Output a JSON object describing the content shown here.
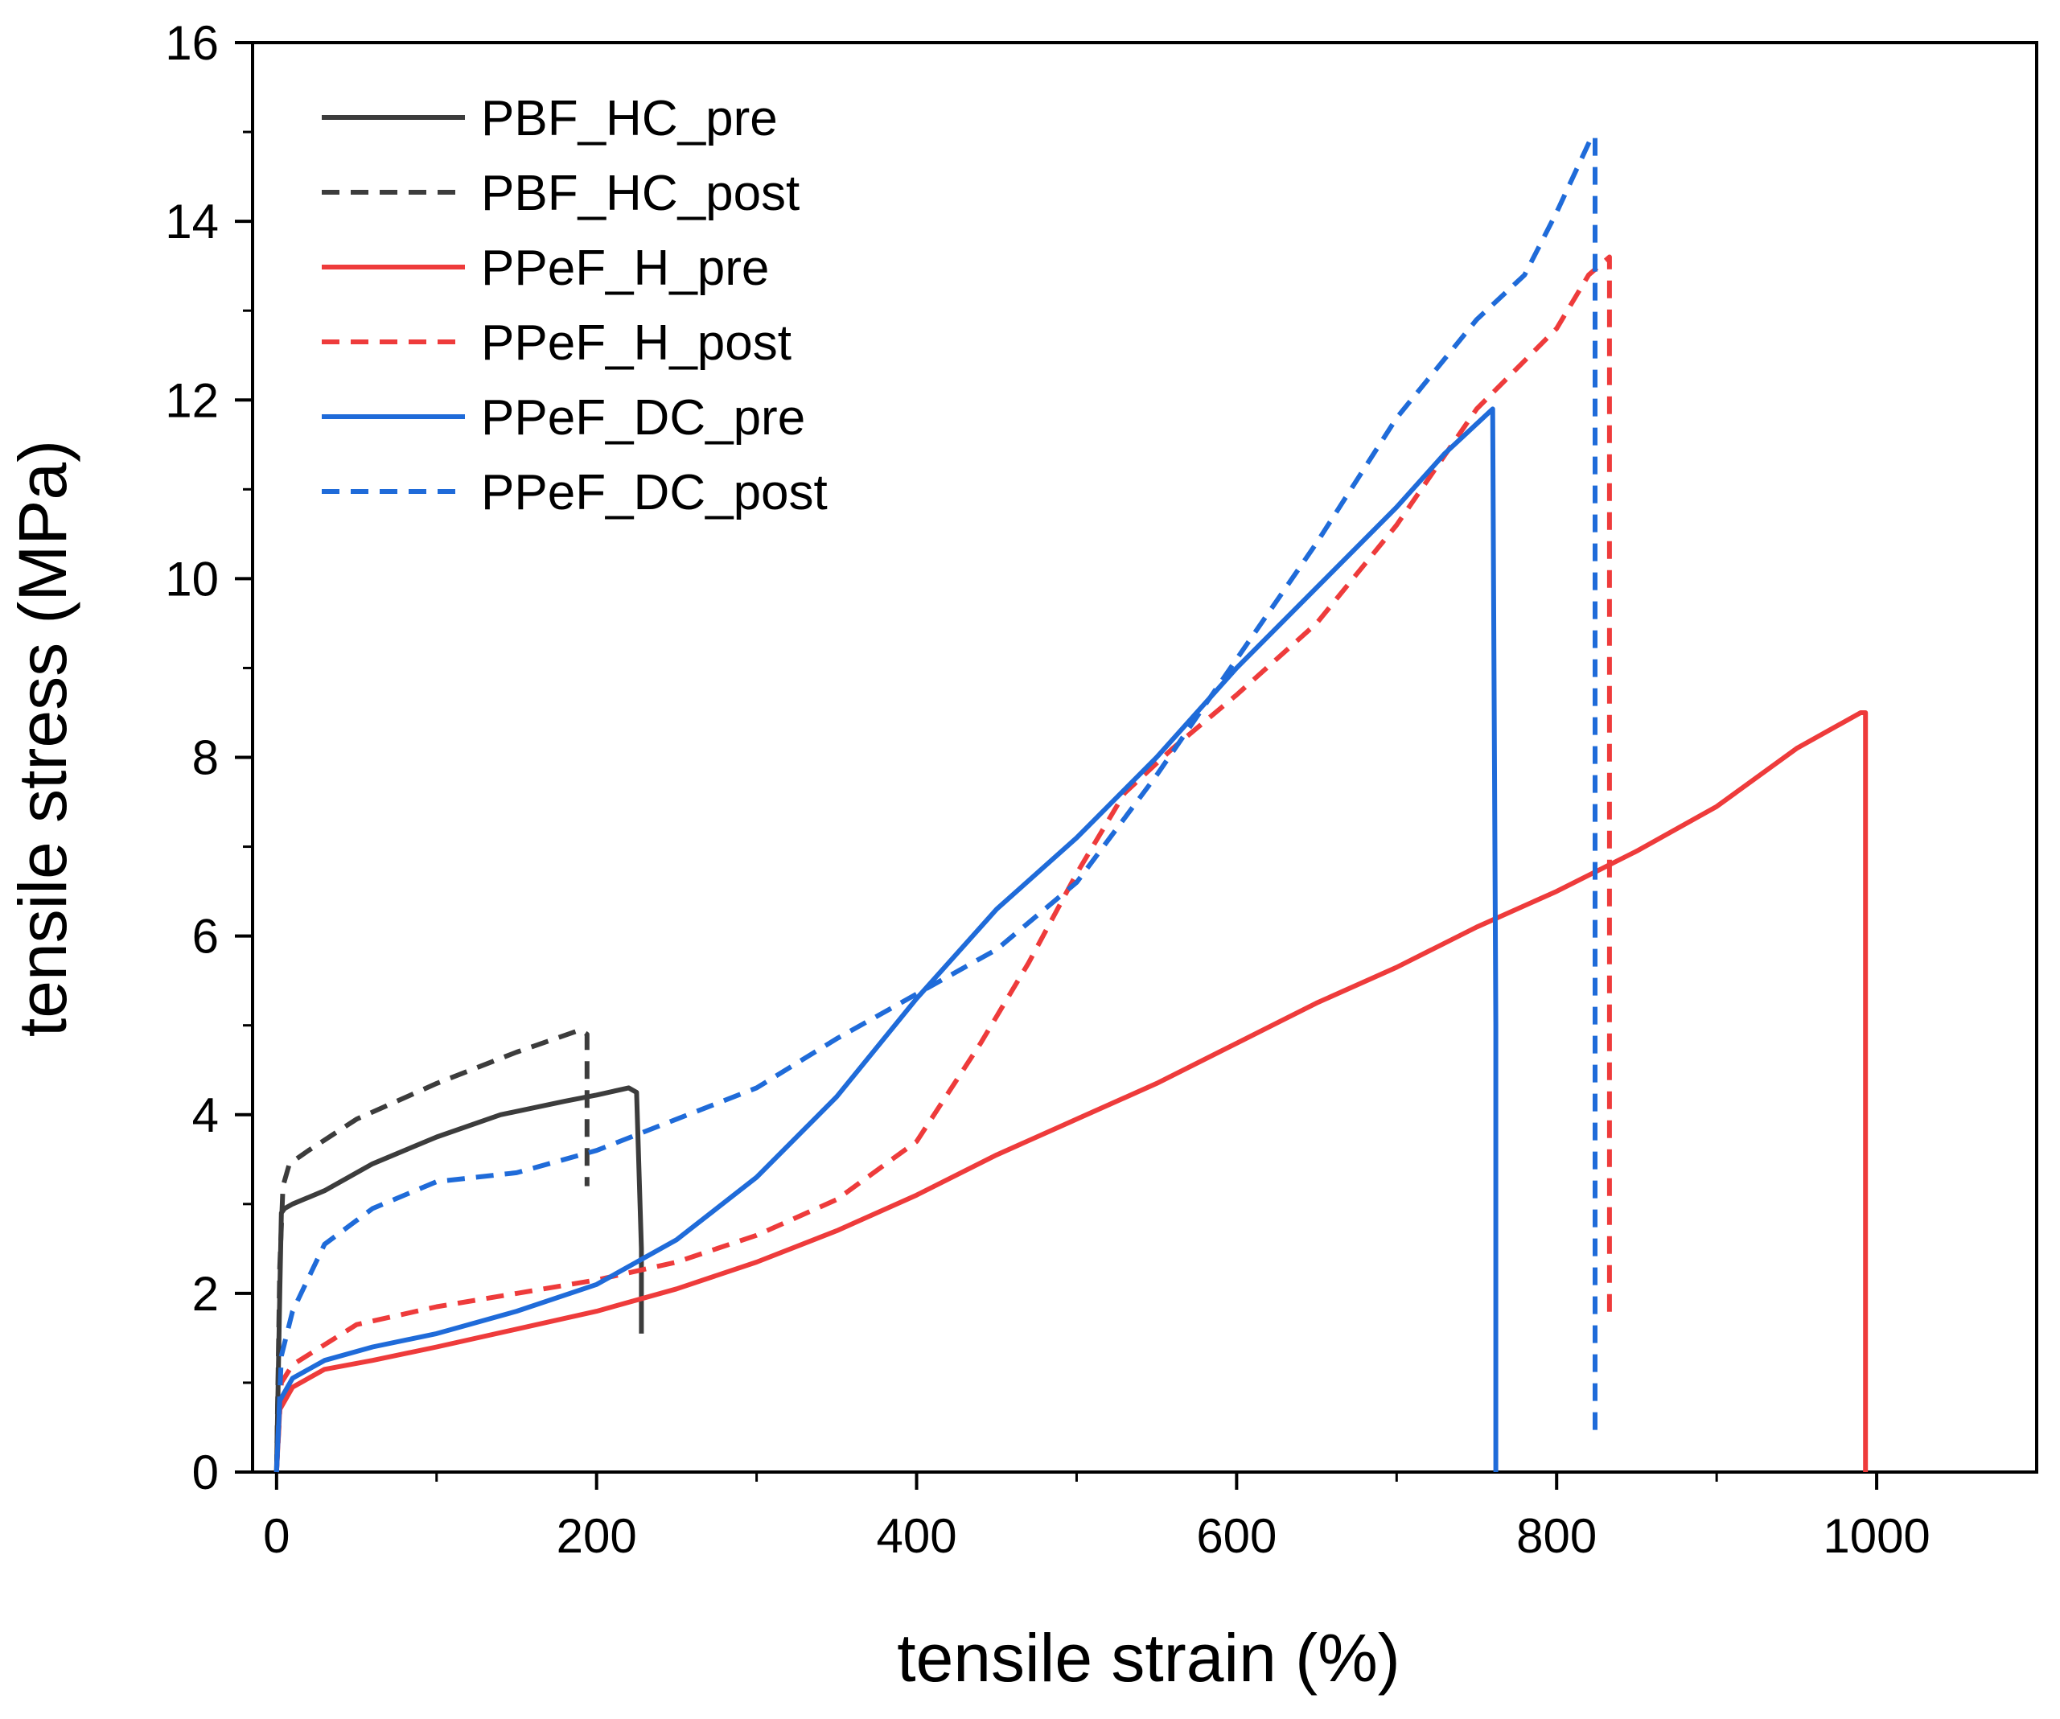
{
  "chart_data": {
    "type": "line",
    "title": "",
    "xlabel": "tensile strain (%)",
    "ylabel": "tensile stress (MPa)",
    "xlim": [
      -15,
      1100
    ],
    "ylim": [
      0,
      16
    ],
    "xticks": [
      0,
      200,
      400,
      600,
      800,
      1000
    ],
    "yticks": [
      0,
      2,
      4,
      6,
      8,
      10,
      12,
      14,
      16
    ],
    "legend_position": "top-left",
    "grid": false,
    "series": [
      {
        "name": "PBF_HC_pre",
        "color": "#3c3c3c",
        "dash": "solid",
        "x": [
          0,
          2,
          3,
          5,
          10,
          30,
          60,
          100,
          140,
          180,
          200,
          220,
          225,
          228,
          228
        ],
        "y": [
          0,
          2.0,
          2.9,
          2.95,
          3.0,
          3.15,
          3.45,
          3.75,
          4.0,
          4.15,
          4.22,
          4.3,
          4.25,
          2.5,
          1.55
        ]
      },
      {
        "name": "PBF_HC_post",
        "color": "#3c3c3c",
        "dash": "dashed",
        "x": [
          0,
          2,
          4,
          8,
          20,
          50,
          100,
          150,
          190,
          194,
          194,
          194
        ],
        "y": [
          0,
          2.3,
          3.2,
          3.45,
          3.6,
          3.95,
          4.35,
          4.7,
          4.95,
          4.9,
          4.0,
          3.2
        ]
      },
      {
        "name": "PPeF_H_pre",
        "color": "#ee3b3b",
        "dash": "solid",
        "x": [
          0,
          2,
          10,
          30,
          60,
          100,
          150,
          200,
          250,
          300,
          350,
          400,
          450,
          500,
          550,
          600,
          650,
          700,
          750,
          800,
          850,
          900,
          950,
          990,
          993,
          993,
          993
        ],
        "y": [
          0,
          0.7,
          0.95,
          1.15,
          1.25,
          1.4,
          1.6,
          1.8,
          2.05,
          2.35,
          2.7,
          3.1,
          3.55,
          3.95,
          4.35,
          4.8,
          5.25,
          5.65,
          6.1,
          6.5,
          6.95,
          7.45,
          8.1,
          8.5,
          8.5,
          1.5,
          0
        ]
      },
      {
        "name": "PPeF_H_post",
        "color": "#ee3b3b",
        "dash": "dashed",
        "x": [
          0,
          3,
          10,
          50,
          100,
          150,
          200,
          250,
          300,
          350,
          400,
          440,
          470,
          500,
          530,
          560,
          600,
          650,
          700,
          750,
          800,
          820,
          833,
          833,
          833
        ],
        "y": [
          0,
          1.0,
          1.2,
          1.65,
          1.85,
          2.0,
          2.15,
          2.35,
          2.65,
          3.05,
          3.7,
          4.8,
          5.7,
          6.7,
          7.6,
          8.1,
          8.7,
          9.5,
          10.6,
          11.9,
          12.8,
          13.4,
          13.6,
          5.0,
          1.7
        ]
      },
      {
        "name": "PPeF_DC_pre",
        "color": "#1f6bd9",
        "dash": "solid",
        "x": [
          0,
          2,
          10,
          30,
          60,
          100,
          150,
          200,
          250,
          300,
          350,
          400,
          450,
          500,
          550,
          600,
          650,
          700,
          730,
          760,
          762,
          762
        ],
        "y": [
          0,
          0.8,
          1.05,
          1.25,
          1.4,
          1.55,
          1.8,
          2.1,
          2.6,
          3.3,
          4.2,
          5.3,
          6.3,
          7.1,
          8.0,
          9.0,
          9.9,
          10.8,
          11.4,
          11.9,
          5.0,
          0
        ]
      },
      {
        "name": "PPeF_DC_post",
        "color": "#1f6bd9",
        "dash": "dashed",
        "x": [
          0,
          3,
          10,
          30,
          60,
          100,
          150,
          200,
          250,
          300,
          350,
          400,
          450,
          500,
          550,
          600,
          650,
          700,
          750,
          780,
          800,
          822,
          824,
          824,
          824
        ],
        "y": [
          0,
          1.3,
          1.8,
          2.55,
          2.95,
          3.25,
          3.35,
          3.6,
          3.95,
          4.3,
          4.85,
          5.35,
          5.85,
          6.6,
          7.8,
          9.1,
          10.4,
          11.8,
          12.9,
          13.4,
          14.1,
          14.95,
          14.95,
          7.0,
          0.4
        ]
      }
    ]
  }
}
